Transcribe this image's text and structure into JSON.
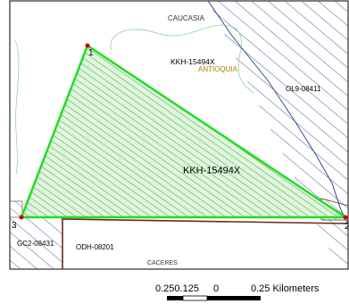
{
  "map": {
    "labels": {
      "caucasia": "CAUCASIA",
      "title_small": "KKH-15494X",
      "antioquia": "ANTIOQUIA",
      "ol9": "OL9-08411",
      "polygon_main": "KKH-15494X",
      "gc2": "GC2-08431",
      "odh": "ODH-08201",
      "caceres": "CACERES"
    },
    "vertices": [
      "1",
      "3",
      "2"
    ],
    "colors": {
      "polygon_stroke": "#22dd22",
      "polygon_hatch": "#1a8a1a",
      "polygon_fill": "#dff5dd",
      "vertex_marker": "#cc0000",
      "neighbor_hatch": "#3a4a8a",
      "odh_border": "#6b2a1a",
      "contour": "#8ccfa0",
      "frame": "#000000",
      "antioquia_text": "#b07a00"
    }
  },
  "scale_bar": {
    "labels": [
      "0.250.125",
      "0",
      "0.25 Kilometers"
    ]
  }
}
